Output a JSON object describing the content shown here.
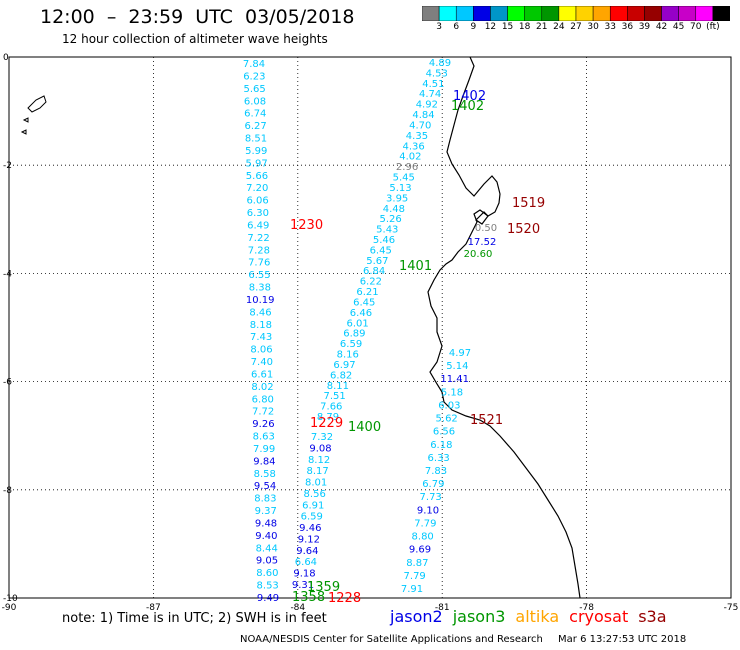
{
  "header": {
    "title": "12:00  –  23:59  UTC  03/05/2018",
    "subtitle": "12 hour collection of altimeter wave heights"
  },
  "legend": {
    "colors": [
      "#7f7f7f",
      "#00ffff",
      "#00c8ff",
      "#0000e6",
      "#0096c8",
      "#00ff00",
      "#00c800",
      "#009600",
      "#ffff00",
      "#ffd200",
      "#ffa500",
      "#ff0000",
      "#c80000",
      "#960000",
      "#9600c8",
      "#c800c8",
      "#ff00ff",
      "#000000"
    ],
    "labels": [
      "3",
      "6",
      "9",
      "12",
      "15",
      "18",
      "21",
      "24",
      "27",
      "30",
      "33",
      "36",
      "39",
      "42",
      "45",
      "70",
      "(ft)"
    ]
  },
  "axes": {
    "x_labels": [
      "-90",
      "-87",
      "-84",
      "-81",
      "-78",
      "-75"
    ],
    "y_labels": [
      "0",
      "-2",
      "-4",
      "-6",
      "-8",
      "-10"
    ]
  },
  "passes": [
    {
      "label": "1402",
      "color": "#0000e6"
    },
    {
      "label": "1402",
      "color": "#009600"
    },
    {
      "label": "1519",
      "color": "#960000"
    },
    {
      "label": "1520",
      "color": "#960000"
    },
    {
      "label": "1230",
      "color": "#ff0000"
    },
    {
      "label": "1401",
      "color": "#009600"
    },
    {
      "label": "1229",
      "color": "#ff0000"
    },
    {
      "label": "1400",
      "color": "#009600"
    },
    {
      "label": "1521",
      "color": "#960000"
    },
    {
      "label": "1359",
      "color": "#009600"
    },
    {
      "label": "1358",
      "color": "#009600"
    },
    {
      "label": "1228",
      "color": "#ff0000"
    }
  ],
  "track_left": {
    "values": [
      "7.84",
      "6.23",
      "5.65",
      "6.08",
      "6.74",
      "6.27",
      "8.51",
      "5.99",
      "5.97",
      "5.66",
      "7.20",
      "6.06",
      "6.30",
      "6.49",
      "7.22",
      "7.28",
      "7.76",
      "6.55",
      "8.38",
      "10.19",
      "8.46",
      "8.18",
      "7.43",
      "8.06",
      "7.40",
      "6.61",
      "8.02",
      "6.80",
      "7.72",
      "9.26",
      "8.63",
      "7.99",
      "9.84",
      "8.58",
      "9.54",
      "8.83",
      "9.37",
      "9.48",
      "9.40",
      "8.44",
      "9.05",
      "8.60",
      "8.53",
      "9.49"
    ],
    "colors": [
      "c",
      "c",
      "c",
      "c",
      "c",
      "c",
      "c",
      "c",
      "c",
      "c",
      "c",
      "c",
      "c",
      "c",
      "c",
      "c",
      "c",
      "c",
      "c",
      "b",
      "c",
      "c",
      "c",
      "c",
      "c",
      "c",
      "c",
      "c",
      "c",
      "b",
      "c",
      "c",
      "b",
      "c",
      "b",
      "c",
      "c",
      "b",
      "b",
      "c",
      "b",
      "c",
      "c",
      "b"
    ]
  },
  "track_mid": {
    "values": [
      "7.32",
      "9.08",
      "8.12",
      "8.17",
      "8.01",
      "8.56",
      "6.91",
      "6.59",
      "9.46",
      "9.12",
      "9.64",
      "6.64",
      "9.18",
      "9.31"
    ],
    "colors": [
      "c",
      "b",
      "c",
      "c",
      "c",
      "c",
      "c",
      "c",
      "b",
      "b",
      "b",
      "c",
      "b",
      "b"
    ]
  },
  "track_diag": {
    "values": [
      "4.89",
      "4.53",
      "4.51",
      "4.74",
      "4.92",
      "4.84",
      "4.70",
      "4.35",
      "4.36",
      "4.02",
      "2.96",
      "5.45",
      "5.13",
      "3.95",
      "4.48",
      "5.26",
      "5.43",
      "5.46",
      "6.45",
      "5.67",
      "6.84",
      "6.22",
      "6.21",
      "6.45",
      "6.46",
      "6.01",
      "6.89",
      "6.59",
      "8.16",
      "6.97",
      "6.82",
      "8.11",
      "7.51",
      "7.66",
      "8.79"
    ],
    "colors": [
      "c",
      "c",
      "c",
      "c",
      "c",
      "c",
      "c",
      "c",
      "c",
      "c",
      "g",
      "c",
      "c",
      "c",
      "c",
      "c",
      "c",
      "c",
      "c",
      "c",
      "c",
      "c",
      "c",
      "c",
      "c",
      "c",
      "c",
      "c",
      "c",
      "c",
      "c",
      "c",
      "c",
      "c",
      "c"
    ]
  },
  "track_right": {
    "values": [
      "4.97",
      "5.14",
      "11.41",
      "5.18",
      "6.03",
      "5.62",
      "6.56",
      "6.18",
      "6.33",
      "7.83",
      "6.79",
      "7.73",
      "9.10",
      "7.79",
      "8.80",
      "9.69",
      "8.87",
      "7.79",
      "7.91"
    ],
    "colors": [
      "c",
      "c",
      "b",
      "c",
      "c",
      "c",
      "c",
      "c",
      "c",
      "c",
      "c",
      "c",
      "b",
      "c",
      "c",
      "b",
      "c",
      "c",
      "c"
    ]
  },
  "coast_values": [
    {
      "value": "0.50",
      "color": "#7f7f7f"
    },
    {
      "value": "17.52",
      "color": "#0000e6"
    },
    {
      "value": "20.60",
      "color": "#009600"
    }
  ],
  "note": "note:  1) Time is in UTC;  2) SWH is in feet",
  "satellites": [
    {
      "name": "jason2",
      "color": "#0000e6"
    },
    {
      "name": "jason3",
      "color": "#009600"
    },
    {
      "name": "altika",
      "color": "#ffa500"
    },
    {
      "name": "cryosat",
      "color": "#ff0000"
    },
    {
      "name": "s3a",
      "color": "#960000"
    }
  ],
  "footer": {
    "agency": "NOAA/NESDIS Center for Satellite Applications and Research",
    "timestamp": "Mar  6 13:27:53 UTC 2018"
  }
}
